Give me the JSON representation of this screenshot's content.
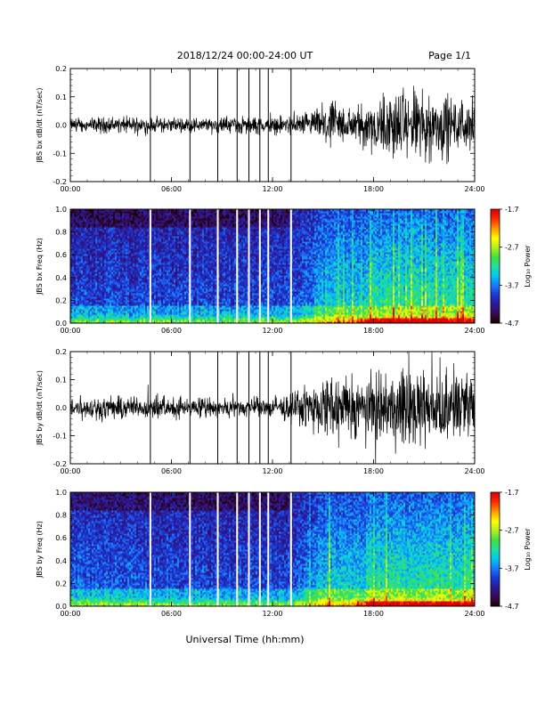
{
  "header": {
    "date_range": "2018/12/24  00:00-24:00 UT",
    "page": "Page 1/1"
  },
  "footer": {
    "xlabel": "Universal Time (hh:mm)"
  },
  "colors": {
    "trace": "#000000",
    "colormap": [
      "#1a0000",
      "#3a0a5a",
      "#2a1a9a",
      "#1a3ad8",
      "#1a7aff",
      "#00c8f0",
      "#20e0a0",
      "#40e040",
      "#b0f020",
      "#ffff00",
      "#ffa000",
      "#ff3000",
      "#e00000"
    ]
  },
  "chart_data": [
    {
      "type": "line",
      "ylabel": "JBS bx dB/dt (nT/sec)",
      "x_ticks": [
        "00:00",
        "06:00",
        "12:00",
        "18:00",
        "24:00"
      ],
      "xlim": [
        0,
        24
      ],
      "ylim": [
        -0.2,
        0.2
      ],
      "y_ticks": [
        "0.2",
        "0.1",
        "0.0",
        "-0.1",
        "-0.2"
      ],
      "gaps_hours": [
        4.75,
        7.1,
        8.75,
        9.9,
        10.6,
        11.25,
        11.75,
        13.1
      ],
      "envelope": {
        "hours": [
          0,
          4,
          6,
          8,
          10,
          12,
          13.5,
          14.5,
          15,
          16,
          17,
          18,
          19,
          20,
          21,
          22,
          23,
          24
        ],
        "amplitude": [
          0.03,
          0.04,
          0.035,
          0.035,
          0.04,
          0.04,
          0.05,
          0.07,
          0.1,
          0.1,
          0.085,
          0.14,
          0.16,
          0.17,
          0.16,
          0.17,
          0.12,
          0.11
        ]
      }
    },
    {
      "type": "heatmap",
      "ylabel": "JBS bx Freq (Hz)",
      "x_ticks": [
        "00:00",
        "06:00",
        "12:00",
        "18:00",
        "24:00"
      ],
      "xlim": [
        0,
        24
      ],
      "ylim": [
        0,
        1
      ],
      "y_ticks": [
        "1.0",
        "0.8",
        "0.6",
        "0.4",
        "0.2",
        "0.0"
      ],
      "gaps_hours": [
        4.75,
        7.1,
        8.75,
        9.9,
        10.6,
        11.25,
        11.75,
        13.1
      ],
      "colorbar": {
        "label": "Log₁₀ Power",
        "ticks": [
          "-1.7",
          "-2.7",
          "-3.7",
          "-4.7"
        ],
        "range": [
          -4.7,
          -1.7
        ]
      }
    },
    {
      "type": "line",
      "ylabel": "JBS by dB/dt (nT/sec)",
      "x_ticks": [
        "00:00",
        "06:00",
        "12:00",
        "18:00",
        "24:00"
      ],
      "xlim": [
        0,
        24
      ],
      "ylim": [
        -0.2,
        0.2
      ],
      "y_ticks": [
        "0.2",
        "0.1",
        "0.0",
        "-0.1",
        "-0.2"
      ],
      "gaps_hours": [
        4.75,
        7.1,
        8.75,
        9.9,
        10.6,
        11.25,
        11.75,
        13.1
      ],
      "envelope": {
        "hours": [
          0,
          2,
          4,
          6,
          8,
          10,
          12,
          13.5,
          14.5,
          15,
          16,
          17,
          18,
          19,
          20,
          21,
          22,
          23,
          24
        ],
        "amplitude": [
          0.05,
          0.06,
          0.055,
          0.05,
          0.045,
          0.045,
          0.05,
          0.07,
          0.12,
          0.15,
          0.16,
          0.14,
          0.17,
          0.19,
          0.19,
          0.18,
          0.19,
          0.16,
          0.14
        ]
      }
    },
    {
      "type": "heatmap",
      "ylabel": "JBS by Freq (Hz)",
      "x_ticks": [
        "00:00",
        "06:00",
        "12:00",
        "18:00",
        "24:00"
      ],
      "xlim": [
        0,
        24
      ],
      "ylim": [
        0,
        1
      ],
      "y_ticks": [
        "1.0",
        "0.8",
        "0.6",
        "0.4",
        "0.2",
        "0.0"
      ],
      "gaps_hours": [
        4.75,
        7.1,
        8.75,
        9.9,
        10.6,
        11.25,
        11.75,
        13.1
      ],
      "colorbar": {
        "label": "Log₁₀ Power",
        "ticks": [
          "-1.7",
          "-2.7",
          "-3.7",
          "-4.7"
        ],
        "range": [
          -4.7,
          -1.7
        ]
      }
    }
  ]
}
